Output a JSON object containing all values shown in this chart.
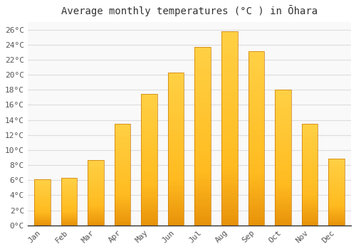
{
  "title": "Average monthly temperatures (°C ) in Ōhara",
  "months": [
    "Jan",
    "Feb",
    "Mar",
    "Apr",
    "May",
    "Jun",
    "Jul",
    "Aug",
    "Sep",
    "Oct",
    "Nov",
    "Dec"
  ],
  "temperatures": [
    6.1,
    6.3,
    8.7,
    13.5,
    17.5,
    20.3,
    23.7,
    25.8,
    23.1,
    18.0,
    13.5,
    8.9
  ],
  "bar_color_dark": "#E8930A",
  "bar_color_mid": "#FFBB20",
  "bar_color_light": "#FFD045",
  "bar_edge_color": "#C87808",
  "ylim": [
    0,
    27
  ],
  "yticks": [
    0,
    2,
    4,
    6,
    8,
    10,
    12,
    14,
    16,
    18,
    20,
    22,
    24,
    26
  ],
  "grid_color": "#dddddd",
  "bg_color": "#ffffff",
  "plot_bg_color": "#f9f9f9",
  "title_fontsize": 10,
  "tick_fontsize": 8,
  "bar_width": 0.6
}
